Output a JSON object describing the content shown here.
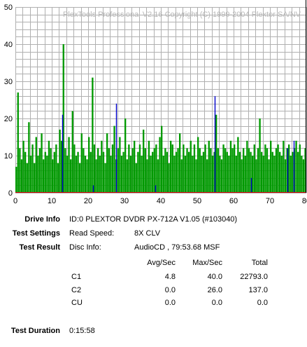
{
  "window": {
    "watermark": "PlexTools Professional V2.16 Copyright (C) 1999-2004 Plextor SA/NV"
  },
  "chart_data": {
    "type": "bar",
    "title": "",
    "xlabel": "",
    "ylabel": "",
    "xlim": [
      0,
      80
    ],
    "ylim": [
      0,
      50
    ],
    "x_ticks": [
      "0",
      "10",
      "20",
      "30",
      "40",
      "50",
      "60",
      "70",
      "80"
    ],
    "y_ticks": [
      "0",
      "10",
      "20",
      "30",
      "40",
      "50"
    ],
    "grid": true,
    "colors": {
      "c1": "#009900",
      "c2": "#0000cc",
      "cu": "#cc0000",
      "grid": "#b0b0b0",
      "end_marker": "#000000"
    },
    "end_marker_x": 79.9,
    "series": [
      {
        "name": "C1",
        "x": [
          0,
          0.5,
          1,
          1.5,
          2,
          2.5,
          3,
          3.5,
          4,
          4.5,
          5,
          5.5,
          6,
          6.5,
          7,
          7.5,
          8,
          8.5,
          9,
          9.5,
          10,
          10.5,
          11,
          11.5,
          12,
          12.5,
          13,
          13.5,
          14,
          14.5,
          15,
          15.5,
          16,
          16.5,
          17,
          17.5,
          18,
          18.5,
          19,
          19.5,
          20,
          20.5,
          21,
          21.5,
          22,
          22.5,
          23,
          23.5,
          24,
          24.5,
          25,
          25.5,
          26,
          26.5,
          27,
          27.5,
          28,
          28.5,
          29,
          29.5,
          30,
          30.5,
          31,
          31.5,
          32,
          32.5,
          33,
          33.5,
          34,
          34.5,
          35,
          35.5,
          36,
          36.5,
          37,
          37.5,
          38,
          38.5,
          39,
          39.5,
          40,
          40.5,
          41,
          41.5,
          42,
          42.5,
          43,
          43.5,
          44,
          44.5,
          45,
          45.5,
          46,
          46.5,
          47,
          47.5,
          48,
          48.5,
          49,
          49.5,
          50,
          50.5,
          51,
          51.5,
          52,
          52.5,
          53,
          53.5,
          54,
          54.5,
          55,
          55.5,
          56,
          56.5,
          57,
          57.5,
          58,
          58.5,
          59,
          59.5,
          60,
          60.5,
          61,
          61.5,
          62,
          62.5,
          63,
          63.5,
          64,
          64.5,
          65,
          65.5,
          66,
          66.5,
          67,
          67.5,
          68,
          68.5,
          69,
          69.5,
          70,
          70.5,
          71,
          71.5,
          72,
          72.5,
          73,
          73.5,
          74,
          74.5,
          75,
          75.5,
          76,
          76.5,
          77,
          77.5,
          78,
          78.5,
          79,
          79.5
        ],
        "values": [
          7,
          27,
          12,
          9,
          14,
          11,
          8,
          19,
          10,
          13,
          8,
          15,
          10,
          12,
          16,
          9,
          11,
          10,
          14,
          12,
          9,
          11,
          13,
          8,
          17,
          14,
          40,
          12,
          10,
          15,
          9,
          22,
          13,
          10,
          11,
          8,
          16,
          12,
          10,
          9,
          15,
          11,
          31,
          13,
          9,
          12,
          10,
          14,
          11,
          8,
          16,
          12,
          10,
          13,
          18,
          9,
          12,
          15,
          10,
          11,
          20,
          9,
          13,
          10,
          12,
          14,
          8,
          11,
          13,
          10,
          17,
          12,
          9,
          14,
          10,
          11,
          12,
          13,
          9,
          15,
          18,
          10,
          12,
          11,
          8,
          14,
          13,
          10,
          11,
          12,
          16,
          9,
          13,
          10,
          12,
          11,
          14,
          10,
          13,
          9,
          15,
          12,
          10,
          11,
          13,
          9,
          14,
          12,
          10,
          11,
          21,
          12,
          10,
          9,
          13,
          12,
          11,
          10,
          14,
          12,
          13,
          10,
          15,
          11,
          9,
          12,
          10,
          14,
          12,
          11,
          10,
          13,
          9,
          12,
          20,
          11,
          10,
          13,
          12,
          9,
          14,
          11,
          10,
          12,
          13,
          11,
          10,
          14,
          9,
          12,
          13,
          10,
          11,
          12,
          14,
          11,
          13,
          10,
          9,
          12
        ]
      },
      {
        "name": "C2",
        "x": [
          12.8,
          21.3,
          27.7,
          38.5,
          54.8,
          64.8,
          74.9,
          76.5
        ],
        "values": [
          21,
          2,
          24,
          2,
          26,
          4,
          12,
          14
        ]
      }
    ]
  },
  "drive_info": {
    "label": "Drive Info",
    "value": "ID:0 PLEXTOR DVDR PX-712A V1.05 (#103040)"
  },
  "test_settings": {
    "label": "Test Settings",
    "key": "Read Speed:",
    "value": "8X CLV"
  },
  "test_result": {
    "label": "Test Result",
    "key": "Disc Info:",
    "value": "AudioCD , 79:53.68 MSF"
  },
  "results_table": {
    "headers": [
      "Avg/Sec",
      "Max/Sec",
      "Total"
    ],
    "rows": [
      {
        "name": "C1",
        "avg": "4.8",
        "max": "40.0",
        "total": "22793.0"
      },
      {
        "name": "C2",
        "avg": "0.0",
        "max": "26.0",
        "total": "137.0"
      },
      {
        "name": "CU",
        "avg": "0.0",
        "max": "0.0",
        "total": "0.0"
      }
    ]
  },
  "test_duration": {
    "label": "Test Duration",
    "value": "0:15:58"
  }
}
